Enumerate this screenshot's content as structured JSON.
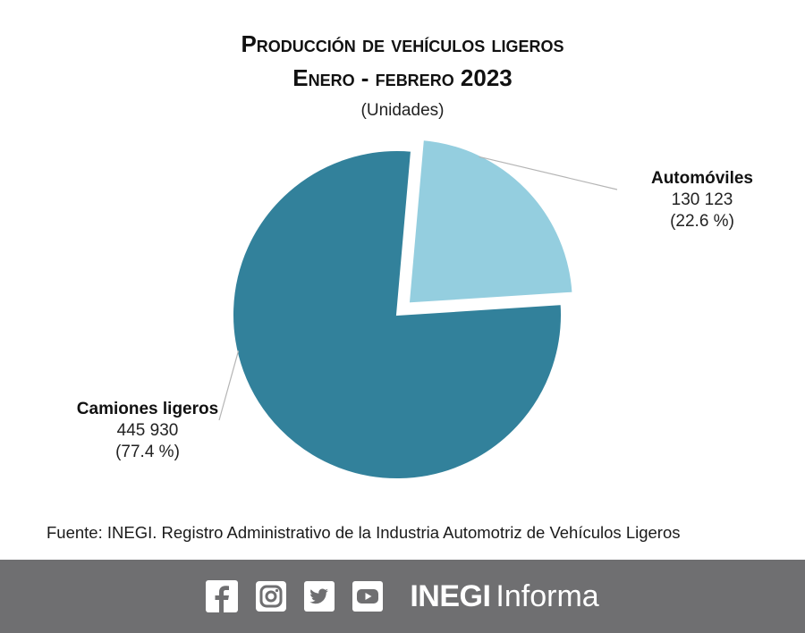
{
  "chart_data": {
    "type": "pie",
    "title": "Producción de vehículos ligeros",
    "title_line2": "Enero - febrero 2023",
    "subtitle": "(Unidades)",
    "slices": [
      {
        "name": "Automóviles",
        "value": 130123,
        "value_label": "130 123",
        "percent": 22.6,
        "percent_label": "(22.6 %)",
        "color": "#94cedf",
        "exploded": true
      },
      {
        "name": "Camiones ligeros",
        "value": 445930,
        "value_label": "445 930",
        "percent": 77.4,
        "percent_label": "(77.4 %)",
        "color": "#32819b",
        "exploded": false
      }
    ],
    "legend": "none"
  },
  "source": "Fuente: INEGI. Registro Administrativo de la Industria Automotriz de Vehículos Ligeros",
  "footer": {
    "brand_bold": "INEGI",
    "brand_regular": "Informa",
    "icons": [
      "facebook-icon",
      "instagram-icon",
      "twitter-icon",
      "youtube-icon"
    ],
    "background": "#6f6f71"
  }
}
